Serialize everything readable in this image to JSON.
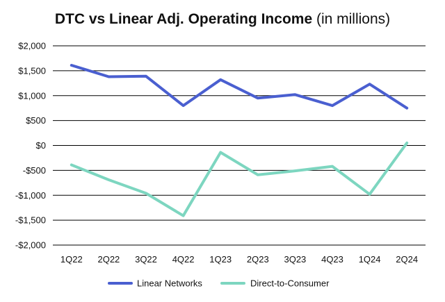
{
  "chart_data": {
    "type": "line",
    "title": "DTC vs Linear Adj. Operating Income",
    "subtitle": "(in millions)",
    "xlabel": "",
    "ylabel": "",
    "categories": [
      "1Q22",
      "2Q22",
      "3Q22",
      "4Q22",
      "1Q23",
      "2Q23",
      "3Q23",
      "4Q23",
      "1Q24",
      "2Q24"
    ],
    "ylim": [
      -2000,
      2000
    ],
    "yticks": [
      2000,
      1500,
      1000,
      500,
      0,
      -500,
      -1000,
      -1500,
      -2000
    ],
    "ytick_labels": [
      "$2,000",
      "$1,500",
      "$1,000",
      "$500",
      "$0",
      "-$500",
      "-$1,000",
      "-$1,500",
      "-$2,000"
    ],
    "grid": true,
    "legend_position": "bottom",
    "series": [
      {
        "name": "Linear Networks",
        "color": "#4a5fd0",
        "values": [
          1610,
          1380,
          1390,
          800,
          1320,
          950,
          1020,
          800,
          1230,
          750
        ]
      },
      {
        "name": "Direct-to-Consumer",
        "color": "#7dd6c0",
        "values": [
          -390,
          -690,
          -960,
          -1410,
          -140,
          -590,
          -510,
          -420,
          -980,
          50
        ]
      }
    ]
  }
}
